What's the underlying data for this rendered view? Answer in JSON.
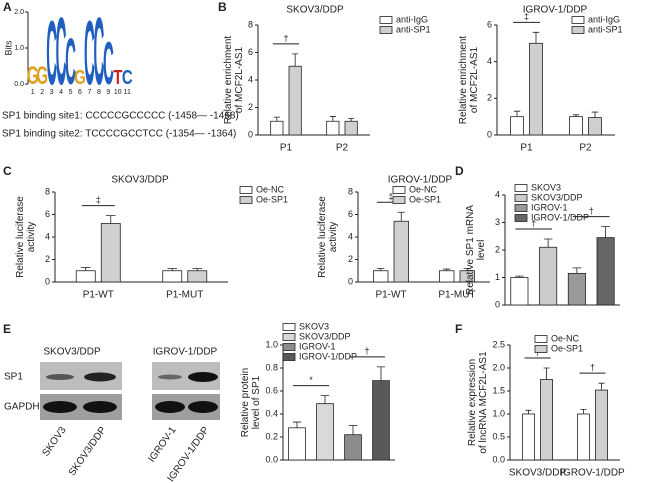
{
  "panels": [
    "A",
    "B",
    "C",
    "D",
    "E",
    "F"
  ],
  "panel_a": {
    "axis_label": "Bits",
    "yticks": [
      {
        "value": 0,
        "label": "0.0"
      },
      {
        "value": 1,
        "label": "1.0"
      },
      {
        "value": 2,
        "label": "2.0"
      }
    ],
    "ylim": [
      0,
      2
    ],
    "positions": [
      "1",
      "2",
      "3",
      "4",
      "5",
      "6",
      "7",
      "8",
      "9",
      "10",
      "11"
    ],
    "logo": [
      {
        "letter": "G",
        "bits": 0.5
      },
      {
        "letter": "G",
        "bits": 0.5
      },
      {
        "letter": "C",
        "bits": 1.8
      },
      {
        "letter": "C",
        "bits": 1.9
      },
      {
        "letter": "C",
        "bits": 1.3
      },
      {
        "letter": "G",
        "bits": 0.4
      },
      {
        "letter": "C",
        "bits": 1.8
      },
      {
        "letter": "C",
        "bits": 1.9
      },
      {
        "letter": "C",
        "bits": 1.2
      },
      {
        "letter": "T",
        "bits": 0.4
      },
      {
        "letter": "C",
        "bits": 0.4
      }
    ],
    "letter_colors": {
      "C": "#1f5fbf",
      "G": "#e0a020",
      "T": "#d02020"
    },
    "sites": [
      "SP1 binding site1:  CCCCCGCCCCC (-1458— -1468)",
      "SP1 binding site2:  TCCCCGCCTCC (-1354— -1364)"
    ]
  },
  "panel_e_blot": {
    "groups": [
      "SKOV3/DDP",
      "IGROV-1/DDP"
    ],
    "rows": [
      "SP1",
      "GAPDH"
    ],
    "lanes": [
      "SKOV3",
      "SKOV3/DDP",
      "IGROV-1",
      "IGROV-1/DDP"
    ]
  },
  "chart_data": [
    {
      "type": "bar",
      "title": "SKOV3/DDP",
      "ylabel": [
        "Relative enrichment",
        "of MCF2L-AS1"
      ],
      "categories": [
        "P1",
        "P2"
      ],
      "series": [
        {
          "name": "anti-IgG",
          "color": "#ffffff",
          "values": [
            1,
            1
          ],
          "errors": [
            0.3,
            0.35
          ]
        },
        {
          "name": "anti-SP1",
          "color": "#d0d0d0",
          "values": [
            5,
            1
          ],
          "errors": [
            0.9,
            0.2
          ]
        }
      ],
      "ylim": [
        0,
        8
      ],
      "yticks": [
        0,
        2,
        4,
        6,
        8
      ],
      "annotations": [
        "†"
      ]
    },
    {
      "type": "bar",
      "title": "IGROV-1/DDP",
      "ylabel": [
        "Relative enrichment",
        "of MCF2L-AS1"
      ],
      "categories": [
        "P1",
        "P2"
      ],
      "series": [
        {
          "name": "anti-IgG",
          "color": "#ffffff",
          "values": [
            1,
            1
          ],
          "errors": [
            0.3,
            0.1
          ]
        },
        {
          "name": "anti-SP1",
          "color": "#d0d0d0",
          "values": [
            5,
            0.95
          ],
          "errors": [
            0.6,
            0.3
          ]
        }
      ],
      "ylim": [
        0,
        6
      ],
      "yticks": [
        0,
        2,
        4,
        6
      ],
      "annotations": [
        "‡"
      ]
    },
    {
      "type": "bar",
      "title": "SKOV3/DDP",
      "ylabel": [
        "Relative luciferase",
        "activity"
      ],
      "categories": [
        "P1-WT",
        "P1-MUT"
      ],
      "series": [
        {
          "name": "Oe-NC",
          "color": "#ffffff",
          "values": [
            1,
            1
          ],
          "errors": [
            0.3,
            0.2
          ]
        },
        {
          "name": "Oe-SP1",
          "color": "#d0d0d0",
          "values": [
            5.2,
            1
          ],
          "errors": [
            0.7,
            0.2
          ]
        }
      ],
      "ylim": [
        0,
        8
      ],
      "yticks": [
        0,
        2,
        4,
        6,
        8
      ],
      "annotations": [
        "‡"
      ]
    },
    {
      "type": "bar",
      "title": "IGROV-1/DDP",
      "ylabel": [
        "Relative luciferase",
        "activity"
      ],
      "categories": [
        "P1-WT",
        "P1-MUT"
      ],
      "series": [
        {
          "name": "Oe-NC",
          "color": "#ffffff",
          "values": [
            1,
            1
          ],
          "errors": [
            0.2,
            0.15
          ]
        },
        {
          "name": "Oe-SP1",
          "color": "#d0d0d0",
          "values": [
            5.4,
            1
          ],
          "errors": [
            0.8,
            0.2
          ]
        }
      ],
      "ylim": [
        0,
        8
      ],
      "yticks": [
        0,
        2,
        4,
        6,
        8
      ],
      "annotations": [
        "‡"
      ]
    },
    {
      "type": "bar",
      "ylabel": [
        "Relative SP1 mRNA",
        "level"
      ],
      "categories": [
        null
      ],
      "series": [
        {
          "name": "SKOV3",
          "color": "#ffffff",
          "values": [
            1.0
          ],
          "errors": [
            0.05
          ]
        },
        {
          "name": "SKOV3/DDP",
          "color": "#cccccc",
          "values": [
            2.1
          ],
          "errors": [
            0.3
          ]
        },
        {
          "name": "IGROV-1",
          "color": "#999999",
          "values": [
            1.15
          ],
          "errors": [
            0.2
          ]
        },
        {
          "name": "IGROV-1/DDP",
          "color": "#666666",
          "values": [
            2.45
          ],
          "errors": [
            0.4
          ]
        }
      ],
      "ylim": [
        0,
        4
      ],
      "yticks": [
        0,
        1,
        2,
        3,
        4
      ],
      "annotations": [
        "†",
        "†"
      ]
    },
    {
      "type": "bar",
      "ylabel": [
        "Relative protein",
        "level of SP1"
      ],
      "categories": [
        null
      ],
      "series": [
        {
          "name": "SKOV3",
          "color": "#ffffff",
          "values": [
            0.28
          ],
          "errors": [
            0.05
          ]
        },
        {
          "name": "SKOV3/DDP",
          "color": "#d9d9d9",
          "values": [
            0.49
          ],
          "errors": [
            0.07
          ]
        },
        {
          "name": "IGROV-1",
          "color": "#8c8c8c",
          "values": [
            0.22
          ],
          "errors": [
            0.08
          ]
        },
        {
          "name": "IGROV-1/DDP",
          "color": "#595959",
          "values": [
            0.69
          ],
          "errors": [
            0.12
          ]
        }
      ],
      "ylim": [
        0,
        1
      ],
      "yticks": [
        {
          "value": 0,
          "label": "0.0"
        },
        0.2,
        0.4,
        0.6,
        0.8,
        {
          "value": 1,
          "label": "1.0"
        }
      ],
      "annotations": [
        "*",
        "†"
      ]
    },
    {
      "type": "bar",
      "ylabel": [
        "Relative expression",
        "of lncRNA MCF2L-AS1"
      ],
      "categories": [
        "SKOV3/DDP",
        "IGROV-1/DDP"
      ],
      "series": [
        {
          "name": "Oe-NC",
          "color": "#ffffff",
          "values": [
            1.0,
            1.0
          ],
          "errors": [
            0.08,
            0.1
          ]
        },
        {
          "name": "Oe-SP1",
          "color": "#d0d0d0",
          "values": [
            1.75,
            1.52
          ],
          "errors": [
            0.25,
            0.15
          ]
        }
      ],
      "ylim": [
        0,
        2.5
      ],
      "yticks": [
        {
          "value": 0,
          "label": "0.0"
        },
        0.5,
        {
          "value": 1,
          "label": "1.0"
        },
        1.5,
        {
          "value": 2,
          "label": "2.0"
        },
        2.5
      ],
      "annotations": [
        "†",
        "†"
      ]
    }
  ]
}
